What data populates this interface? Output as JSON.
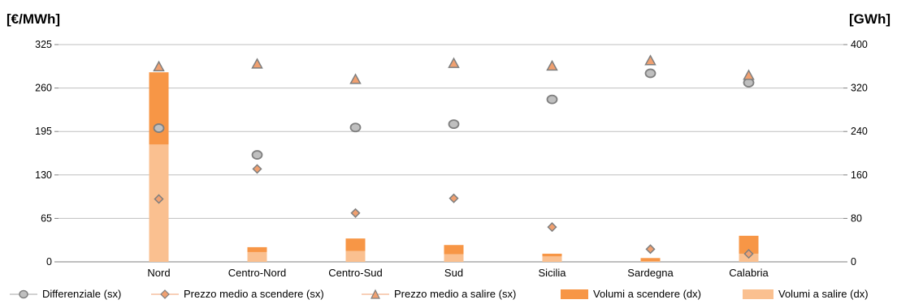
{
  "chart_data": {
    "type": "bar",
    "title": "",
    "left_axis_label": "[€/MWh]",
    "right_axis_label": "[GWh]",
    "categories": [
      "Nord",
      "Centro-Nord",
      "Centro-Sud",
      "Sud",
      "Sicilia",
      "Sardegna",
      "Calabria"
    ],
    "y_left": {
      "ticks": [
        0,
        65,
        130,
        195,
        260,
        325
      ],
      "range": [
        0,
        325
      ]
    },
    "y_right": {
      "ticks": [
        0,
        80,
        160,
        240,
        320,
        400
      ],
      "range": [
        0,
        400
      ]
    },
    "grid": true,
    "legend_position": "bottom",
    "series": [
      {
        "name": "Differenziale (sx)",
        "kind": "marker-circle",
        "axis": "left",
        "color": "#bfbfbf",
        "stroke": "#7f7f7f",
        "values": [
          200,
          160,
          201,
          206,
          243,
          282,
          268
        ]
      },
      {
        "name": "Prezzo medio a scendere (sx)",
        "kind": "marker-diamond",
        "axis": "left",
        "color": "#f0a070",
        "stroke": "#7f7f7f",
        "values": [
          94,
          139,
          73,
          95,
          52,
          19,
          12
        ]
      },
      {
        "name": "Prezzo medio a salire (sx)",
        "kind": "marker-triangle",
        "axis": "left",
        "color": "#f0a070",
        "stroke": "#7f7f7f",
        "values": [
          292,
          296,
          273,
          297,
          293,
          301,
          279
        ]
      },
      {
        "name": "Volumi a scendere (dx)",
        "kind": "bar-stack",
        "axis": "right",
        "color": "#f79646",
        "values": [
          133,
          9,
          23,
          17,
          5,
          6,
          33
        ]
      },
      {
        "name": "Volumi a salire (dx)",
        "kind": "bar-stack",
        "axis": "right",
        "color": "#fac090",
        "values": [
          216,
          18,
          20,
          14,
          10,
          1,
          15
        ]
      }
    ]
  }
}
